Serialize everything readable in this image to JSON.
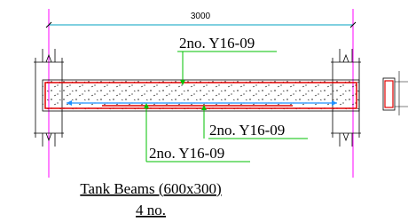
{
  "dimension": "3000",
  "labels": [
    "2no. Y16-09",
    "2no. Y16-09",
    "2no. Y16-09"
  ],
  "title": "Tank Beams (600x300)",
  "subtitle": "4 no."
}
